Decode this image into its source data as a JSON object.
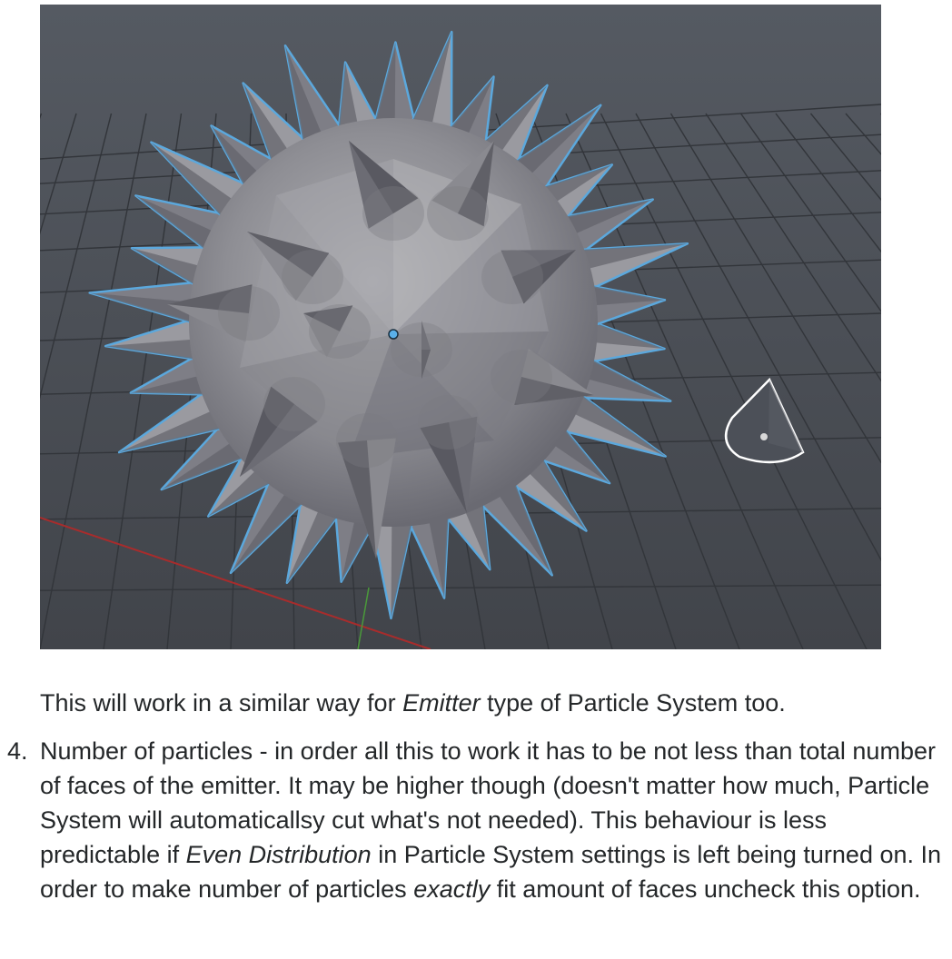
{
  "figure": {
    "alt_hidden": ""
  },
  "paragraph": {
    "before": "This will work in a similar way for ",
    "emph": "Emitter",
    "after": " type of Particle System too."
  },
  "list_item": {
    "number": "4.",
    "text_1": "Number of particles - in order all this to work it has to be not less than total number of faces of the emitter. It may be higher though (doesn't matter how much, Particle System will automaticallsy cut what's not needed). This behaviour is less predictable if ",
    "emph_1": "Even Distribution",
    "text_2": " in Particle System settings is left being turned on. In order to make number of particles ",
    "emph_2": "exactly",
    "text_3": " fit amount of faces uncheck this option."
  },
  "colors": {
    "viewport_bg": "#4a4e55",
    "grid_line": "#34373c",
    "x_axis": "#b02a2a",
    "y_axis": "#4a9a3a",
    "selection_outline": "#5ba8dd",
    "mesh_light": "#a9a9ad",
    "mesh_mid": "#85858b",
    "mesh_dark": "#5c5c64",
    "cone_outline": "#ffffff"
  }
}
